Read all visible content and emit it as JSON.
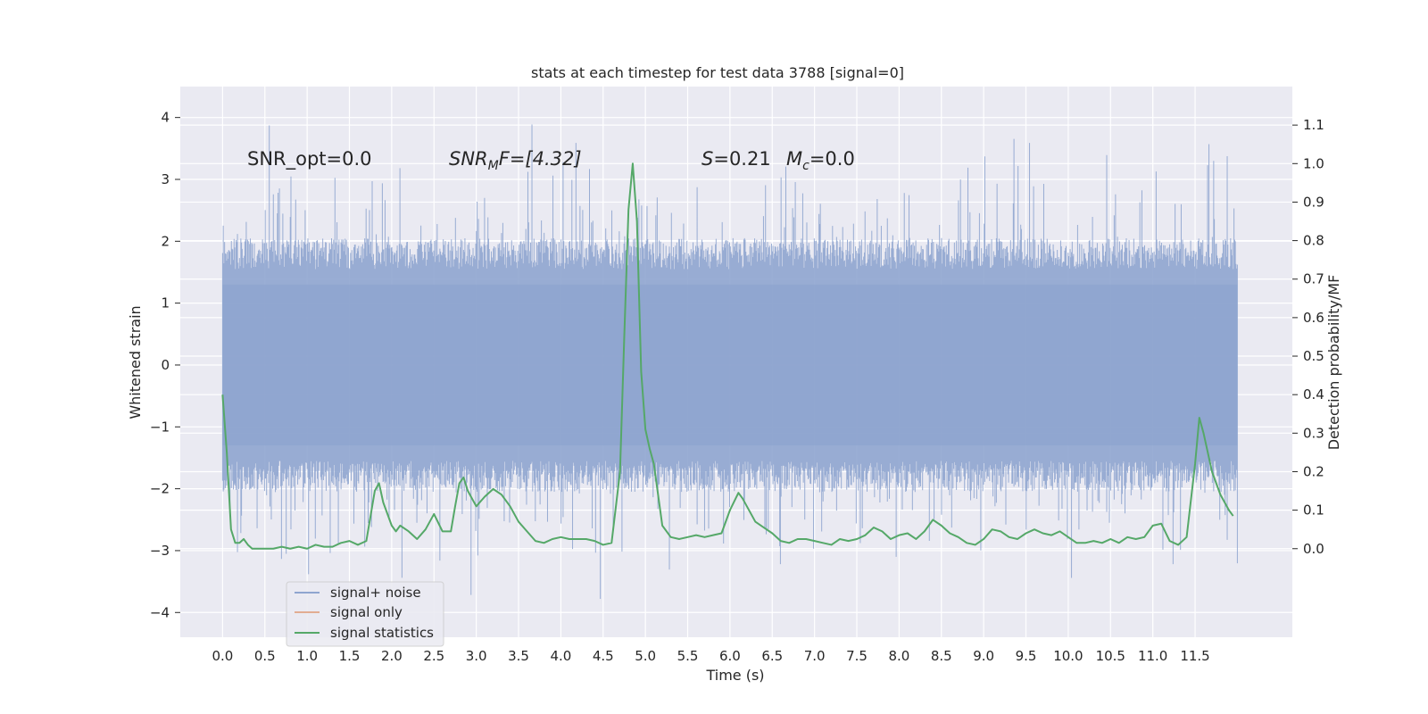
{
  "chart_data": {
    "type": "line",
    "title": "stats at each timestep for test data 3788 [signal=0]",
    "xlabel": "Time (s)",
    "ylabel": "Whitened strain",
    "y2label": "Detection probability/MF",
    "xlim": [
      -0.5,
      12.65
    ],
    "ylim": [
      -4.4,
      4.5
    ],
    "y2lim": [
      -0.23,
      1.2
    ],
    "x_ticks": [
      0.0,
      0.5,
      1.0,
      1.5,
      2.0,
      2.5,
      3.0,
      3.5,
      4.0,
      4.5,
      5.0,
      5.5,
      6.0,
      6.5,
      7.0,
      7.5,
      8.0,
      8.5,
      9.0,
      9.5,
      10.0,
      10.5,
      11.0,
      11.5
    ],
    "x_tick_labels": [
      "0.0",
      "0.5",
      "1.0",
      "1.5",
      "2.0",
      "2.5",
      "3.0",
      "3.5",
      "4.0",
      "4.5",
      "5.0",
      "5.5",
      "6.0",
      "6.5",
      "7.0",
      "7.5",
      "8.0",
      "8.5",
      "9.0",
      "9.5",
      "10.0",
      "10.5",
      "11.0",
      "11.5"
    ],
    "y_ticks": [
      -4,
      -3,
      -2,
      -1,
      0,
      1,
      2,
      3,
      4
    ],
    "y_tick_labels": [
      "−4",
      "−3",
      "−2",
      "−1",
      "0",
      "1",
      "2",
      "3",
      "4"
    ],
    "y2_ticks": [
      0.0,
      0.1,
      0.2,
      0.3,
      0.4,
      0.5,
      0.6,
      0.7,
      0.8,
      0.9,
      1.0,
      1.1
    ],
    "y2_tick_labels": [
      "0.0",
      "0.1",
      "0.2",
      "0.3",
      "0.4",
      "0.5",
      "0.6",
      "0.7",
      "0.8",
      "0.9",
      "1.0",
      "1.1"
    ],
    "grid": true,
    "legend_position": "lower-left",
    "annotations": {
      "snr_opt": "SNR_opt=0.0",
      "snr_mf_base": "SNR",
      "snr_mf_sub": "M",
      "snr_mf_rest": "F=[4.32]",
      "s_base": "S",
      "s_rest": "=0.21",
      "mc_base": "M",
      "mc_sub": "c",
      "mc_rest": "=0.0"
    },
    "noise_series": {
      "name": "signal+ noise",
      "color": "#8fa5cf",
      "x_range": [
        0.0,
        12.0
      ],
      "band_y": [
        -1.3,
        1.3
      ],
      "envelope_y": [
        -2.5,
        2.5
      ],
      "y_max": 4.1,
      "y_min": -4.05
    },
    "series": [
      {
        "name": "signal only",
        "color": "#dd8452",
        "x": [],
        "y": []
      },
      {
        "name": "signal statistics",
        "color": "#55a868",
        "axis": "right",
        "x": [
          0.0,
          0.05,
          0.1,
          0.15,
          0.2,
          0.25,
          0.3,
          0.35,
          0.4,
          0.45,
          0.5,
          0.6,
          0.7,
          0.8,
          0.9,
          1.0,
          1.1,
          1.2,
          1.3,
          1.4,
          1.5,
          1.6,
          1.7,
          1.8,
          1.85,
          1.9,
          2.0,
          2.05,
          2.1,
          2.2,
          2.3,
          2.4,
          2.5,
          2.6,
          2.7,
          2.75,
          2.8,
          2.85,
          2.9,
          3.0,
          3.1,
          3.2,
          3.3,
          3.4,
          3.5,
          3.6,
          3.7,
          3.8,
          3.9,
          4.0,
          4.1,
          4.2,
          4.3,
          4.4,
          4.5,
          4.6,
          4.7,
          4.75,
          4.8,
          4.85,
          4.9,
          4.95,
          5.0,
          5.05,
          5.1,
          5.2,
          5.3,
          5.4,
          5.5,
          5.6,
          5.7,
          5.8,
          5.9,
          6.0,
          6.1,
          6.15,
          6.2,
          6.3,
          6.4,
          6.5,
          6.6,
          6.7,
          6.8,
          6.9,
          7.0,
          7.1,
          7.2,
          7.3,
          7.4,
          7.5,
          7.6,
          7.7,
          7.8,
          7.9,
          8.0,
          8.1,
          8.2,
          8.3,
          8.4,
          8.5,
          8.6,
          8.7,
          8.8,
          8.9,
          9.0,
          9.1,
          9.2,
          9.3,
          9.4,
          9.5,
          9.6,
          9.7,
          9.8,
          9.9,
          10.0,
          10.1,
          10.2,
          10.3,
          10.4,
          10.5,
          10.6,
          10.7,
          10.8,
          10.9,
          11.0,
          11.1,
          11.2,
          11.3,
          11.4,
          11.5,
          11.55,
          11.6,
          11.7,
          11.8,
          11.9,
          11.95
        ],
        "y": [
          0.4,
          0.25,
          0.05,
          0.015,
          0.015,
          0.025,
          0.01,
          0.0,
          0.0,
          0.0,
          0.0,
          0.0,
          0.005,
          0.0,
          0.005,
          0.0,
          0.01,
          0.005,
          0.005,
          0.015,
          0.02,
          0.01,
          0.02,
          0.15,
          0.17,
          0.12,
          0.06,
          0.045,
          0.06,
          0.045,
          0.025,
          0.05,
          0.09,
          0.045,
          0.045,
          0.11,
          0.17,
          0.185,
          0.15,
          0.11,
          0.135,
          0.155,
          0.14,
          0.11,
          0.07,
          0.045,
          0.02,
          0.015,
          0.025,
          0.03,
          0.025,
          0.025,
          0.025,
          0.02,
          0.01,
          0.015,
          0.2,
          0.55,
          0.88,
          1.0,
          0.85,
          0.46,
          0.31,
          0.26,
          0.22,
          0.06,
          0.03,
          0.025,
          0.03,
          0.035,
          0.03,
          0.035,
          0.04,
          0.1,
          0.145,
          0.13,
          0.11,
          0.07,
          0.055,
          0.04,
          0.02,
          0.015,
          0.025,
          0.025,
          0.02,
          0.015,
          0.01,
          0.025,
          0.02,
          0.025,
          0.035,
          0.055,
          0.045,
          0.025,
          0.035,
          0.04,
          0.025,
          0.045,
          0.075,
          0.06,
          0.04,
          0.03,
          0.015,
          0.01,
          0.025,
          0.05,
          0.045,
          0.03,
          0.025,
          0.04,
          0.05,
          0.04,
          0.035,
          0.045,
          0.03,
          0.015,
          0.015,
          0.02,
          0.015,
          0.025,
          0.015,
          0.03,
          0.025,
          0.03,
          0.06,
          0.065,
          0.02,
          0.01,
          0.03,
          0.22,
          0.34,
          0.3,
          0.2,
          0.14,
          0.1,
          0.085
        ]
      }
    ]
  },
  "colors": {
    "plot_bg": "#eaeaf2",
    "grid": "#ffffff",
    "noise": "#8fa5cf",
    "signal_only": "#dd8452",
    "statistics": "#55a868"
  }
}
